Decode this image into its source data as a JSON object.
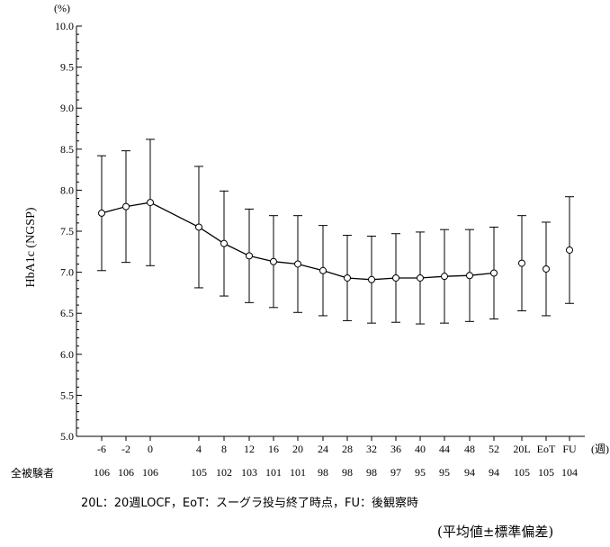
{
  "chart_data": {
    "type": "line",
    "ylabel": "HbA1c (NGSP)",
    "y_unit": "(%)",
    "x_unit": "(週)",
    "ylim": [
      5.0,
      10.0
    ],
    "yticks": [
      "5.0",
      "5.5",
      "6.0",
      "6.5",
      "7.0",
      "7.5",
      "8.0",
      "8.5",
      "9.0",
      "9.5",
      "10.0"
    ],
    "categories": [
      "-6",
      "-2",
      "0",
      "4",
      "8",
      "12",
      "16",
      "20",
      "24",
      "28",
      "32",
      "36",
      "40",
      "44",
      "48",
      "52",
      "20L",
      "EoT",
      "FU"
    ],
    "series": [
      {
        "mean": [
          7.72,
          7.8,
          7.85,
          7.55,
          7.35,
          7.2,
          7.13,
          7.1,
          7.02,
          6.93,
          6.91,
          6.93,
          6.93,
          6.95,
          6.96,
          6.99,
          7.11,
          7.04,
          7.27
        ],
        "sd": [
          0.7,
          0.68,
          0.77,
          0.74,
          0.64,
          0.57,
          0.56,
          0.59,
          0.55,
          0.52,
          0.53,
          0.54,
          0.56,
          0.57,
          0.56,
          0.56,
          0.58,
          0.57,
          0.65
        ]
      }
    ],
    "connected_through": "52",
    "grid": false
  },
  "n_row": {
    "label": "全被験者",
    "values": [
      "106",
      "106",
      "106",
      "105",
      "102",
      "103",
      "101",
      "101",
      "98",
      "98",
      "98",
      "97",
      "95",
      "95",
      "94",
      "94",
      "105",
      "105",
      "104"
    ]
  },
  "footnotes": {
    "abbreviations": "20L：20週LOCF，EoT：スーグラ投与終了時点，FU：後観察時",
    "statistic": "(平均値±標準偏差)"
  }
}
